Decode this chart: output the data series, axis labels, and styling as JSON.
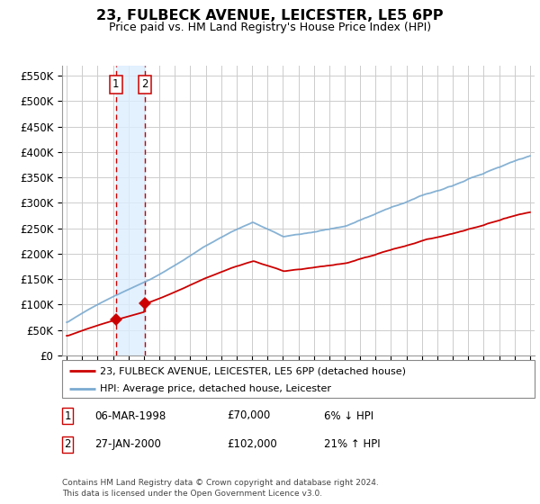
{
  "title": "23, FULBECK AVENUE, LEICESTER, LE5 6PP",
  "subtitle": "Price paid vs. HM Land Registry's House Price Index (HPI)",
  "transactions": [
    {
      "date": 1998.18,
      "price": 70000,
      "label": "1"
    },
    {
      "date": 2000.07,
      "price": 102000,
      "label": "2"
    }
  ],
  "vline_dates": [
    1998.18,
    2000.07
  ],
  "legend_line1": "23, FULBECK AVENUE, LEICESTER, LE5 6PP (detached house)",
  "legend_line2": "HPI: Average price, detached house, Leicester",
  "table_rows": [
    {
      "num": "1",
      "date": "06-MAR-1998",
      "price": "£70,000",
      "change": "6% ↓ HPI"
    },
    {
      "num": "2",
      "date": "27-JAN-2000",
      "price": "£102,000",
      "change": "21% ↑ HPI"
    }
  ],
  "footnote": "Contains HM Land Registry data © Crown copyright and database right 2024.\nThis data is licensed under the Open Government Licence v3.0.",
  "line_color_red": "#cc0000",
  "line_color_blue": "#7aaad0",
  "vline_color": "#cc0000",
  "shade_color": "#ddeeff",
  "bg_color": "#ffffff",
  "grid_color": "#cccccc",
  "ylim": [
    0,
    570000
  ],
  "yticks": [
    0,
    50000,
    100000,
    150000,
    200000,
    250000,
    300000,
    350000,
    400000,
    450000,
    500000,
    550000
  ],
  "xlim_left": 1994.7,
  "xlim_right": 2025.3
}
